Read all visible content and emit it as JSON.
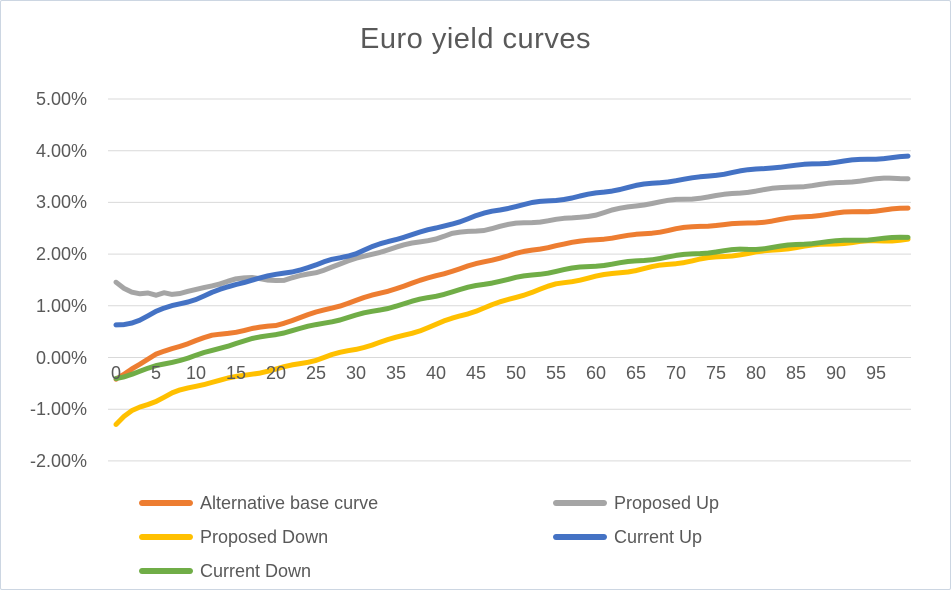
{
  "chart_data": {
    "type": "line",
    "title": "Euro yield curves",
    "xlabel": "",
    "ylabel": "",
    "x_ticks": [
      0,
      5,
      10,
      15,
      20,
      25,
      30,
      35,
      40,
      45,
      50,
      55,
      60,
      65,
      70,
      75,
      80,
      85,
      90,
      95
    ],
    "x_range": [
      0,
      99
    ],
    "y_ticks": [
      "5.00%",
      "4.00%",
      "3.00%",
      "2.00%",
      "1.00%",
      "0.00%",
      "-1.00%",
      "-2.00%"
    ],
    "ylim": [
      -2.0,
      5.0
    ],
    "y_unit": "percent",
    "grid": "horizontal",
    "legend_position": "bottom",
    "colors": {
      "grid": "#d9d9d9",
      "text": "#595959",
      "border": "#ccd6e2",
      "background": "#ffffff"
    },
    "series": [
      {
        "name": "Alternative base curve",
        "color": "#ED7D31",
        "points": [
          [
            0,
            -0.42
          ],
          [
            2,
            -0.2
          ],
          [
            4,
            -0.03
          ],
          [
            5,
            0.06
          ],
          [
            7,
            0.18
          ],
          [
            10,
            0.32
          ],
          [
            12,
            0.41
          ],
          [
            15,
            0.5
          ],
          [
            17,
            0.56
          ],
          [
            20,
            0.63
          ],
          [
            22,
            0.73
          ],
          [
            25,
            0.86
          ],
          [
            28,
            1.0
          ],
          [
            30,
            1.1
          ],
          [
            33,
            1.25
          ],
          [
            35,
            1.35
          ],
          [
            38,
            1.48
          ],
          [
            40,
            1.58
          ],
          [
            43,
            1.71
          ],
          [
            45,
            1.8
          ],
          [
            48,
            1.94
          ],
          [
            50,
            2.02
          ],
          [
            53,
            2.1
          ],
          [
            55,
            2.17
          ],
          [
            58,
            2.23
          ],
          [
            60,
            2.28
          ],
          [
            63,
            2.34
          ],
          [
            65,
            2.38
          ],
          [
            68,
            2.44
          ],
          [
            70,
            2.48
          ],
          [
            73,
            2.53
          ],
          [
            75,
            2.56
          ],
          [
            78,
            2.59
          ],
          [
            80,
            2.62
          ],
          [
            83,
            2.67
          ],
          [
            85,
            2.7
          ],
          [
            88,
            2.75
          ],
          [
            90,
            2.78
          ],
          [
            93,
            2.83
          ],
          [
            95,
            2.85
          ],
          [
            99,
            2.89
          ]
        ]
      },
      {
        "name": "Proposed Up",
        "color": "#A5A5A5",
        "points": [
          [
            0,
            1.47
          ],
          [
            1,
            1.34
          ],
          [
            2,
            1.25
          ],
          [
            3,
            1.21
          ],
          [
            4,
            1.23
          ],
          [
            5,
            1.2
          ],
          [
            6,
            1.26
          ],
          [
            7,
            1.23
          ],
          [
            8,
            1.24
          ],
          [
            10,
            1.31
          ],
          [
            12,
            1.4
          ],
          [
            14,
            1.49
          ],
          [
            15,
            1.52
          ],
          [
            17,
            1.53
          ],
          [
            19,
            1.5
          ],
          [
            21,
            1.49
          ],
          [
            23,
            1.57
          ],
          [
            25,
            1.65
          ],
          [
            27,
            1.77
          ],
          [
            30,
            1.91
          ],
          [
            32,
            2.0
          ],
          [
            35,
            2.12
          ],
          [
            37,
            2.2
          ],
          [
            40,
            2.31
          ],
          [
            42,
            2.4
          ],
          [
            44,
            2.44
          ],
          [
            46,
            2.47
          ],
          [
            48,
            2.53
          ],
          [
            50,
            2.58
          ],
          [
            53,
            2.63
          ],
          [
            55,
            2.67
          ],
          [
            57,
            2.7
          ],
          [
            60,
            2.77
          ],
          [
            62,
            2.84
          ],
          [
            65,
            2.93
          ],
          [
            67,
            2.98
          ],
          [
            70,
            3.05
          ],
          [
            73,
            3.1
          ],
          [
            75,
            3.13
          ],
          [
            78,
            3.18
          ],
          [
            80,
            3.22
          ],
          [
            83,
            3.27
          ],
          [
            85,
            3.31
          ],
          [
            88,
            3.35
          ],
          [
            90,
            3.38
          ],
          [
            93,
            3.42
          ],
          [
            95,
            3.44
          ],
          [
            99,
            3.47
          ]
        ]
      },
      {
        "name": "Proposed Down",
        "color": "#FFC000",
        "points": [
          [
            0,
            -1.3
          ],
          [
            1,
            -1.15
          ],
          [
            2,
            -1.03
          ],
          [
            3,
            -0.95
          ],
          [
            4,
            -0.89
          ],
          [
            5,
            -0.83
          ],
          [
            7,
            -0.69
          ],
          [
            8,
            -0.64
          ],
          [
            10,
            -0.56
          ],
          [
            12,
            -0.48
          ],
          [
            15,
            -0.38
          ],
          [
            17,
            -0.31
          ],
          [
            20,
            -0.22
          ],
          [
            22,
            -0.15
          ],
          [
            25,
            -0.05
          ],
          [
            27,
            0.04
          ],
          [
            30,
            0.16
          ],
          [
            33,
            0.3
          ],
          [
            35,
            0.39
          ],
          [
            38,
            0.53
          ],
          [
            40,
            0.63
          ],
          [
            43,
            0.8
          ],
          [
            45,
            0.9
          ],
          [
            48,
            1.07
          ],
          [
            50,
            1.18
          ],
          [
            53,
            1.32
          ],
          [
            55,
            1.41
          ],
          [
            58,
            1.5
          ],
          [
            60,
            1.56
          ],
          [
            63,
            1.65
          ],
          [
            65,
            1.7
          ],
          [
            68,
            1.78
          ],
          [
            70,
            1.82
          ],
          [
            73,
            1.89
          ],
          [
            75,
            1.93
          ],
          [
            78,
            2.0
          ],
          [
            80,
            2.04
          ],
          [
            83,
            2.1
          ],
          [
            85,
            2.13
          ],
          [
            88,
            2.17
          ],
          [
            90,
            2.2
          ],
          [
            93,
            2.24
          ],
          [
            95,
            2.26
          ],
          [
            99,
            2.29
          ]
        ]
      },
      {
        "name": "Current Up",
        "color": "#4472C4",
        "points": [
          [
            0,
            0.62
          ],
          [
            1,
            0.63
          ],
          [
            2,
            0.67
          ],
          [
            3,
            0.73
          ],
          [
            5,
            0.88
          ],
          [
            7,
            0.99
          ],
          [
            8,
            1.04
          ],
          [
            10,
            1.14
          ],
          [
            12,
            1.26
          ],
          [
            15,
            1.42
          ],
          [
            17,
            1.5
          ],
          [
            18,
            1.53
          ],
          [
            20,
            1.59
          ],
          [
            22,
            1.66
          ],
          [
            25,
            1.79
          ],
          [
            27,
            1.9
          ],
          [
            30,
            2.02
          ],
          [
            32,
            2.13
          ],
          [
            35,
            2.28
          ],
          [
            37,
            2.38
          ],
          [
            40,
            2.5
          ],
          [
            42,
            2.6
          ],
          [
            45,
            2.74
          ],
          [
            47,
            2.82
          ],
          [
            50,
            2.92
          ],
          [
            52,
            2.98
          ],
          [
            55,
            3.05
          ],
          [
            57,
            3.1
          ],
          [
            60,
            3.18
          ],
          [
            62,
            3.23
          ],
          [
            65,
            3.31
          ],
          [
            67,
            3.36
          ],
          [
            70,
            3.43
          ],
          [
            72,
            3.47
          ],
          [
            75,
            3.54
          ],
          [
            77,
            3.58
          ],
          [
            80,
            3.63
          ],
          [
            82,
            3.67
          ],
          [
            85,
            3.71
          ],
          [
            87,
            3.75
          ],
          [
            90,
            3.79
          ],
          [
            92,
            3.81
          ],
          [
            95,
            3.84
          ],
          [
            97,
            3.86
          ],
          [
            99,
            3.88
          ]
        ]
      },
      {
        "name": "Current Down",
        "color": "#70AD47",
        "points": [
          [
            0,
            -0.4
          ],
          [
            1,
            -0.36
          ],
          [
            2,
            -0.31
          ],
          [
            3,
            -0.26
          ],
          [
            5,
            -0.16
          ],
          [
            7,
            -0.08
          ],
          [
            9,
            -0.01
          ],
          [
            10,
            0.03
          ],
          [
            12,
            0.12
          ],
          [
            15,
            0.28
          ],
          [
            17,
            0.36
          ],
          [
            20,
            0.46
          ],
          [
            22,
            0.53
          ],
          [
            25,
            0.62
          ],
          [
            28,
            0.73
          ],
          [
            30,
            0.81
          ],
          [
            33,
            0.93
          ],
          [
            35,
            1.01
          ],
          [
            38,
            1.12
          ],
          [
            40,
            1.19
          ],
          [
            43,
            1.3
          ],
          [
            45,
            1.38
          ],
          [
            48,
            1.49
          ],
          [
            50,
            1.55
          ],
          [
            53,
            1.62
          ],
          [
            55,
            1.67
          ],
          [
            58,
            1.73
          ],
          [
            60,
            1.77
          ],
          [
            63,
            1.83
          ],
          [
            65,
            1.87
          ],
          [
            68,
            1.93
          ],
          [
            70,
            1.96
          ],
          [
            73,
            2.01
          ],
          [
            75,
            2.04
          ],
          [
            78,
            2.09
          ],
          [
            80,
            2.11
          ],
          [
            83,
            2.15
          ],
          [
            85,
            2.18
          ],
          [
            88,
            2.22
          ],
          [
            90,
            2.24
          ],
          [
            93,
            2.28
          ],
          [
            95,
            2.3
          ],
          [
            99,
            2.33
          ]
        ]
      }
    ]
  }
}
